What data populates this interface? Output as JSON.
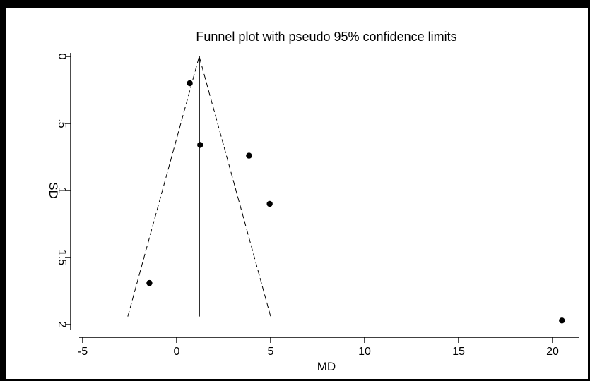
{
  "chart_data": {
    "type": "scatter",
    "title": "Funnel plot with pseudo 95% confidence limits",
    "xlabel": "MD",
    "ylabel": "SD",
    "xlim": [
      -5,
      21
    ],
    "ylim": [
      0,
      2
    ],
    "y_reversed": true,
    "x_ticks": [
      -5,
      0,
      5,
      10,
      15,
      20
    ],
    "x_tick_labels": [
      "-5",
      "0",
      "5",
      "10",
      "15",
      "20"
    ],
    "y_ticks": [
      0,
      0.5,
      1,
      1.5,
      2
    ],
    "y_tick_labels": [
      "0",
      ".5",
      "1",
      "1.5",
      "2"
    ],
    "grid": false,
    "legend": "none",
    "points": [
      {
        "x": 0.7,
        "y": 0.2
      },
      {
        "x": 1.25,
        "y": 0.66
      },
      {
        "x": 3.85,
        "y": 0.74
      },
      {
        "x": 4.95,
        "y": 1.1
      },
      {
        "x": -1.45,
        "y": 1.69
      },
      {
        "x": 20.5,
        "y": 1.97
      }
    ],
    "pooled_estimate": 1.2,
    "ci_limits": {
      "apex": {
        "x": 1.2,
        "y": 0
      },
      "lower_left": {
        "x": -2.6,
        "y": 1.94
      },
      "lower_right": {
        "x": 5.0,
        "y": 1.94
      }
    },
    "colors": {
      "points": "#000000",
      "lines": "#000000",
      "frame": "#000000"
    }
  }
}
